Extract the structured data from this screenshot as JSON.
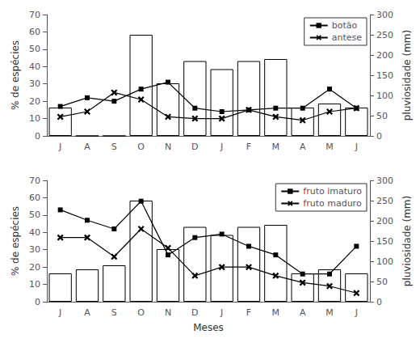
{
  "chart_data": [
    {
      "type": "bar",
      "categories": [
        "J",
        "A",
        "S",
        "O",
        "N",
        "D",
        "J",
        "F",
        "M",
        "A",
        "M",
        "J"
      ],
      "ylabel": "% de espécies",
      "y2label": "pluviosidade (mm)",
      "ylim": [
        0,
        70
      ],
      "yticks": [
        0,
        10,
        20,
        30,
        40,
        50,
        60,
        70
      ],
      "y2lim": [
        0,
        300
      ],
      "y2ticks": [
        0,
        50,
        100,
        150,
        200,
        250,
        300
      ],
      "grid": false,
      "legend": "upper right",
      "series": [
        {
          "type": "bar",
          "axis": "y2",
          "color": "white",
          "values": [
            70,
            0,
            0,
            250,
            130,
            185,
            165,
            185,
            190,
            70,
            80,
            70
          ]
        },
        {
          "name": "botão",
          "type": "line",
          "color": "black",
          "marker": "square",
          "line_style": "solid",
          "values": [
            17,
            22,
            20,
            27,
            31,
            16,
            14,
            15,
            16,
            16,
            27,
            16
          ]
        },
        {
          "name": "antese",
          "type": "line",
          "color": "black",
          "marker": "x",
          "line_style": "solid",
          "values": [
            11,
            14,
            25,
            21,
            11,
            10,
            10,
            15,
            11,
            9,
            14,
            16
          ]
        }
      ]
    },
    {
      "type": "bar",
      "categories": [
        "J",
        "A",
        "S",
        "O",
        "N",
        "D",
        "J",
        "F",
        "M",
        "A",
        "M",
        "J"
      ],
      "xlabel": "Meses",
      "ylabel": "% de espécies",
      "y2label": "pluviosidade (mm)",
      "ylim": [
        0,
        70
      ],
      "yticks": [
        0,
        10,
        20,
        30,
        40,
        50,
        60,
        70
      ],
      "y2lim": [
        0,
        300
      ],
      "y2ticks": [
        0,
        50,
        100,
        150,
        200,
        250,
        300
      ],
      "grid": false,
      "legend": "upper right",
      "series": [
        {
          "type": "bar",
          "axis": "y2",
          "color": "white",
          "values": [
            70,
            80,
            90,
            250,
            130,
            185,
            165,
            185,
            190,
            70,
            80,
            70
          ]
        },
        {
          "name": "fruto imaturo",
          "type": "line",
          "color": "black",
          "marker": "square",
          "line_style": "solid",
          "values": [
            53,
            47,
            42,
            58,
            27,
            37,
            39,
            32,
            27,
            16,
            16,
            32
          ]
        },
        {
          "name": "fruto maduro",
          "type": "line",
          "color": "black",
          "marker": "x",
          "line_style": "solid",
          "values": [
            37,
            37,
            26,
            42,
            31,
            15,
            20,
            20,
            15,
            11,
            9,
            5
          ]
        }
      ]
    }
  ]
}
